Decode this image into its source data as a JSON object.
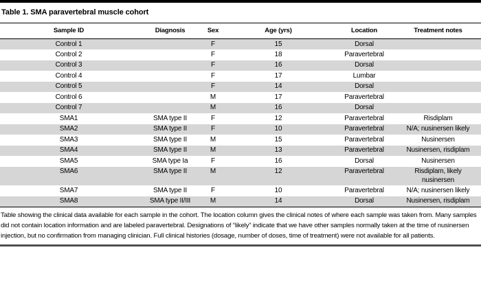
{
  "title": "Table 1. SMA paravertebral muscle cohort",
  "colors": {
    "stripe_gray": "#d6d6d6",
    "rule_black": "#000000",
    "bottom_rule_gray": "#4f4f4f"
  },
  "table": {
    "columns": [
      "Sample ID",
      "Diagnosis",
      "Sex",
      "Age (yrs)",
      "Location",
      "Treatment notes"
    ],
    "rows": [
      {
        "sample_id": "Control 1",
        "diagnosis": "",
        "sex": "F",
        "age": "15",
        "location": "Dorsal",
        "treatment": []
      },
      {
        "sample_id": "Control 2",
        "diagnosis": "",
        "sex": "F",
        "age": "18",
        "location": "Paravertebral",
        "treatment": []
      },
      {
        "sample_id": "Control 3",
        "diagnosis": "",
        "sex": "F",
        "age": "16",
        "location": "Dorsal",
        "treatment": []
      },
      {
        "sample_id": "Control 4",
        "diagnosis": "",
        "sex": "F",
        "age": "17",
        "location": "Lumbar",
        "treatment": []
      },
      {
        "sample_id": "Control 5",
        "diagnosis": "",
        "sex": "F",
        "age": "14",
        "location": "Dorsal",
        "treatment": []
      },
      {
        "sample_id": "Control 6",
        "diagnosis": "",
        "sex": "M",
        "age": "17",
        "location": "Paravertebral",
        "treatment": []
      },
      {
        "sample_id": "Control 7",
        "diagnosis": "",
        "sex": "M",
        "age": "16",
        "location": "Dorsal",
        "treatment": []
      },
      {
        "sample_id": "SMA1",
        "diagnosis": "SMA type II",
        "sex": "F",
        "age": "12",
        "location": "Paravertebral",
        "treatment": [
          "Risdiplam"
        ]
      },
      {
        "sample_id": "SMA2",
        "diagnosis": "SMA type II",
        "sex": "F",
        "age": "10",
        "location": "Paravertebral",
        "treatment": [
          "N/A; nusinersen likely"
        ]
      },
      {
        "sample_id": "SMA3",
        "diagnosis": "SMA type II",
        "sex": "M",
        "age": "15",
        "location": "Paravertebral",
        "treatment": [
          "Nusinersen"
        ]
      },
      {
        "sample_id": "SMA4",
        "diagnosis": "SMA type II",
        "sex": "M",
        "age": "13",
        "location": "Paravertebral",
        "treatment": [
          "Nusinersen, risdiplam"
        ]
      },
      {
        "sample_id": "SMA5",
        "diagnosis": "SMA type Ia",
        "sex": "F",
        "age": "16",
        "location": "Dorsal",
        "treatment": [
          "Nusinersen"
        ]
      },
      {
        "sample_id": "SMA6",
        "diagnosis": "SMA type II",
        "sex": "M",
        "age": "12",
        "location": "Paravertebral",
        "treatment": [
          "Risdiplam, likely",
          "nusinersen"
        ]
      },
      {
        "sample_id": "SMA7",
        "diagnosis": "SMA type II",
        "sex": "F",
        "age": "10",
        "location": "Paravertebral",
        "treatment": [
          "N/A; nusinersen likely"
        ]
      },
      {
        "sample_id": "SMA8",
        "diagnosis": "SMA type II/III",
        "sex": "M",
        "age": "14",
        "location": "Dorsal",
        "treatment": [
          "Nusinersen, risdiplam"
        ]
      }
    ]
  },
  "footnote": "Table showing the clinical data available for each sample in the cohort. The location column gives the clinical notes of where each sample was taken from. Many samples did not contain location information and are labeled paravertebral. Designations of “likely” indicate that we have other samples normally taken at the time of nusinersen injection, but no confirmation from managing clinician. Full clinical histories (dosage, number of doses, time of treatment) were not available for all patients."
}
